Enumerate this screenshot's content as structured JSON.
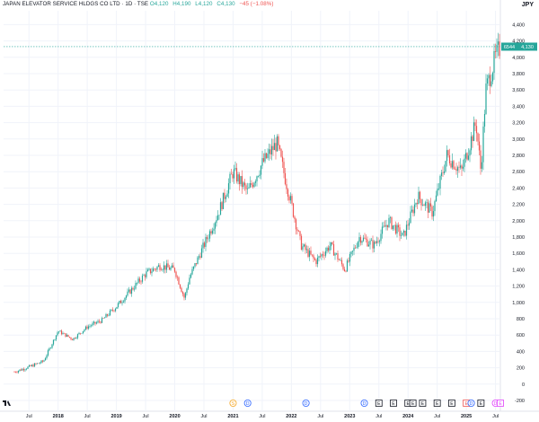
{
  "header": {
    "symbol": "JAPAN ELEVATOR SERVICE HLDGS CO LTD · 1D · TSE",
    "open": "O4,120",
    "high": "H4,190",
    "low": "L4,120",
    "close": "C4,130",
    "change": "−45 (−1.08%)",
    "currency": "JPY"
  },
  "price_badge": {
    "symbol_code": "6544",
    "value": "4,130",
    "color": "#26a69a"
  },
  "colors": {
    "up": "#26a69a",
    "down": "#ef5350",
    "grid": "#f0f3fa",
    "axis_text": "#131722"
  },
  "events": [
    {
      "label": "S",
      "color": "#f5a623",
      "at": "2021-01"
    },
    {
      "label": "D",
      "color": "#2962ff",
      "at": "2021-04"
    },
    {
      "label": "D",
      "color": "#2962ff",
      "at": "2022-04"
    },
    {
      "label": "D",
      "color": "#2962ff",
      "at": "2023-04"
    },
    {
      "label": "E",
      "color": "#131722",
      "at": "2023-07"
    },
    {
      "label": "E",
      "color": "#131722",
      "at": "2023-10"
    },
    {
      "label": "E",
      "color": "#131722",
      "at": "2024-01"
    },
    {
      "label": "E",
      "color": "#131722",
      "at": "2024-02"
    },
    {
      "label": "E",
      "color": "#131722",
      "at": "2024-04"
    },
    {
      "label": "E",
      "color": "#131722",
      "at": "2024-07"
    },
    {
      "label": "E",
      "color": "#131722",
      "at": "2024-10"
    },
    {
      "label": "E",
      "color": "#ef5350",
      "at": "2025-01"
    },
    {
      "label": "D",
      "color": "#2962ff",
      "at": "2025-02"
    },
    {
      "label": "E",
      "color": "#131722",
      "at": "2025-04"
    },
    {
      "label": "D",
      "color": "#e040fb",
      "at": "2025-07"
    },
    {
      "label": "E",
      "color": "#e040fb",
      "at": "2025-08"
    }
  ],
  "chart_data": {
    "type": "candlestick",
    "title": "JAPAN ELEVATOR SERVICE HLDGS CO LTD · 1D · TSE",
    "ylabel": "JPY",
    "ylim": [
      -200,
      4400
    ],
    "y_ticks": [
      "-200",
      "0",
      "200",
      "400",
      "600",
      "800",
      "1,000",
      "1,200",
      "1,400",
      "1,600",
      "1,800",
      "2,000",
      "2,200",
      "2,400",
      "2,600",
      "2,800",
      "3,000",
      "3,200",
      "3,400",
      "3,600",
      "3,800",
      "4,000",
      "4,200",
      "4,400"
    ],
    "x_ticks": [
      "Jul",
      "2018",
      "Jul",
      "2019",
      "Jul",
      "2020",
      "Jul",
      "2021",
      "Jul",
      "2022",
      "Jul",
      "2023",
      "Jul",
      "2024",
      "Jul",
      "2025",
      "Jul"
    ],
    "grid": true,
    "series": [
      {
        "name": "price",
        "dates": [
          "2017-04",
          "2017-07",
          "2017-10",
          "2018-01",
          "2018-04",
          "2018-07",
          "2018-10",
          "2019-01",
          "2019-04",
          "2019-07",
          "2019-10",
          "2020-01",
          "2020-03",
          "2020-04",
          "2020-07",
          "2020-10",
          "2021-01",
          "2021-04",
          "2021-07",
          "2021-10",
          "2022-01",
          "2022-03",
          "2022-06",
          "2022-09",
          "2022-12",
          "2023-03",
          "2023-06",
          "2023-09",
          "2023-12",
          "2024-03",
          "2024-06",
          "2024-09",
          "2024-12",
          "2025-03",
          "2025-04",
          "2025-05",
          "2025-07",
          "2025-08"
        ],
        "values": [
          150,
          210,
          280,
          650,
          550,
          700,
          780,
          950,
          1150,
          1350,
          1450,
          1400,
          1050,
          1300,
          1700,
          2100,
          2600,
          2350,
          2700,
          2950,
          2200,
          1700,
          1500,
          1700,
          1400,
          1800,
          1700,
          2000,
          1800,
          2300,
          2100,
          2800,
          2600,
          3200,
          2600,
          3600,
          4000,
          4130
        ]
      }
    ],
    "last": {
      "open": 4120,
      "high": 4190,
      "low": 4120,
      "close": 4130,
      "change": -45,
      "change_pct": -1.08
    }
  }
}
